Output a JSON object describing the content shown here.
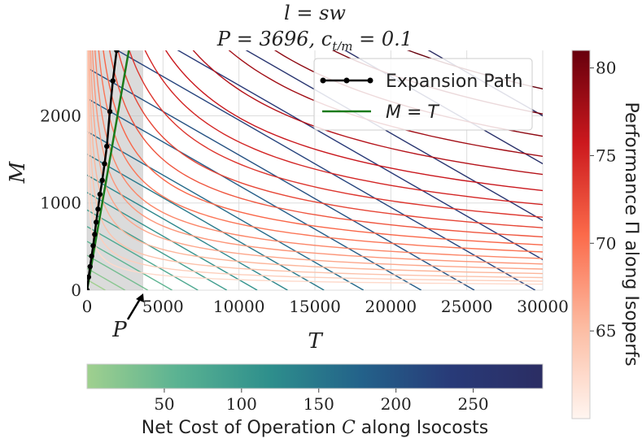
{
  "chart_data": {
    "type": "line",
    "title_line1": "l = sw",
    "title_line2": "P = 3696, c",
    "title_line2_sub": "t/m",
    "title_line2_tail": " = 0.1",
    "xlabel": "T",
    "ylabel": "M",
    "xlim": [
      0,
      30000
    ],
    "ylim": [
      0,
      2750
    ],
    "x_ticks": [
      0,
      5000,
      10000,
      15000,
      20000,
      25000,
      30000
    ],
    "x_tick_labels": [
      "0",
      "5000",
      "10000",
      "15000",
      "20000",
      "25000",
      "30000"
    ],
    "y_ticks": [
      0,
      1000,
      2000
    ],
    "y_tick_labels": [
      "0",
      "1000",
      "2000"
    ],
    "grid": true,
    "shaded_region": {
      "x_from": 0,
      "x_to": 3696,
      "label": "P"
    },
    "legend": {
      "placement": "top-right",
      "entries": [
        {
          "name": "Expansion Path",
          "color": "#000000",
          "marker": true
        },
        {
          "name": "M = T",
          "color": "#1a7a1a",
          "marker": false
        }
      ]
    },
    "expansion_path": {
      "name": "Expansion Path",
      "x": [
        0,
        100,
        200,
        300,
        400,
        500,
        600,
        720,
        850,
        1000,
        1150,
        1300,
        1500,
        1700,
        1950
      ],
      "y": [
        0,
        150,
        270,
        390,
        510,
        640,
        780,
        930,
        1100,
        1260,
        1450,
        1650,
        2050,
        2400,
        2750
      ]
    },
    "identity_line": {
      "name": "M = T",
      "x": [
        0,
        2750
      ],
      "y": [
        0,
        2750
      ]
    },
    "isoperfs": {
      "form": "M = a / T^0.5",
      "a_values": [
        12000,
        18000,
        25000,
        33000,
        42000,
        52000,
        63000,
        76000,
        90000,
        106000,
        124000,
        145000,
        170000,
        198000,
        230000,
        266000,
        306000,
        350000,
        400000
      ]
    },
    "isocosts": {
      "form": "M = k - 0.1 * T",
      "k_values": [
        120,
        250,
        400,
        560,
        730,
        920,
        1120,
        1320,
        1560,
        1820,
        2200,
        2550,
        2950,
        3350,
        3800,
        4450,
        5000
      ]
    },
    "colorbar_perf": {
      "label": "Performance Π along Isoperfs",
      "min": 60,
      "max": 81,
      "ticks": [
        65,
        70,
        75,
        80
      ],
      "tick_labels": [
        "65",
        "70",
        "75",
        "80"
      ],
      "colors": [
        "#fff5f0",
        "#fcbba1",
        "#fb6a4a",
        "#cb181d",
        "#67000d"
      ]
    },
    "colorbar_cost": {
      "label_prefix": "Net Cost of Operation ",
      "label_symbol": "C",
      "label_suffix": " along Isocosts",
      "min": 0,
      "max": 295,
      "ticks": [
        50,
        100,
        150,
        200,
        250
      ],
      "tick_labels": [
        "50",
        "100",
        "150",
        "200",
        "250"
      ],
      "colors": [
        "#a0d08f",
        "#5ab292",
        "#2e8f8c",
        "#23628a",
        "#283a78",
        "#2b2d63"
      ]
    }
  }
}
